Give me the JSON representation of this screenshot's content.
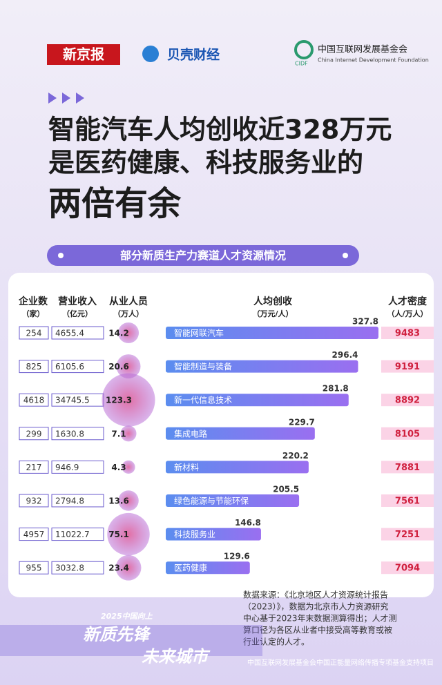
{
  "header": {
    "logo1": "新京报",
    "logo2": "贝壳财经",
    "logo3": "中国互联网发展基金会",
    "logo3_en": "China Internet Development Foundation",
    "logo3_abbr": "CIDF"
  },
  "title": [
    "智能汽车人均创收近328万元",
    "是医药健康、科技服务业的",
    "两倍有余"
  ],
  "chart_data": {
    "type": "bar",
    "orientation": "horizontal",
    "title": "部分新质生产力赛道人才资源情况",
    "columns": [
      [
        "企业数",
        "（家）"
      ],
      [
        "营业收入",
        "（亿元）"
      ],
      [
        "从业人员",
        "（万人）"
      ],
      [
        "人均创收",
        "（万元/人）"
      ],
      [
        "人才密度",
        "（人/万人）"
      ]
    ],
    "categories": [
      "智能网联汽车",
      "智能制造与装备",
      "新一代信息技术",
      "集成电路",
      "新材料",
      "绿色能源与节能环保",
      "科技服务业",
      "医药健康"
    ],
    "companies": [
      254,
      825,
      4618,
      299,
      217,
      932,
      4957,
      955
    ],
    "revenue": [
      4655.4,
      6105.6,
      34745.5,
      1630.8,
      946.9,
      2794.8,
      11022.7,
      3032.8
    ],
    "employees": [
      14.2,
      20.6,
      123.3,
      7.1,
      4.3,
      13.6,
      75.1,
      23.4
    ],
    "values": [
      327.8,
      296.4,
      281.8,
      229.7,
      220.2,
      205.5,
      146.8,
      129.6
    ],
    "density": [
      9483,
      9191,
      8892,
      8105,
      7881,
      7561,
      7251,
      7094
    ],
    "color": "#6f7ef0"
  },
  "source": [
    "数据来源：《北京地区人才资源统计报告",
    "（2023）》，数据为北京市人力资源研究",
    "中心基于2023年末数据测算得出；人才测",
    "算口径为各区从业者中接受高等教育或被",
    "行业认定的人才。"
  ],
  "campaign": {
    "small": "2025中国向上",
    "line1": "新质先锋",
    "line2": "未来城市"
  },
  "footer": "中国互联网发展基金会中国正能量网络传播专项基金支持项目"
}
